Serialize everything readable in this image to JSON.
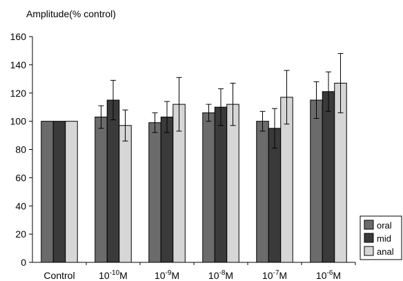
{
  "chart_data": {
    "type": "bar",
    "ylabel": "Amplitude(% control)",
    "xlabel": "",
    "ylim": [
      0,
      160
    ],
    "yticks": [
      0,
      20,
      40,
      60,
      80,
      100,
      120,
      140,
      160
    ],
    "categories": [
      {
        "base": "Control",
        "exp": "",
        "unit": ""
      },
      {
        "base": "10",
        "exp": "-10",
        "unit": "M"
      },
      {
        "base": "10",
        "exp": "-9",
        "unit": "M"
      },
      {
        "base": "10",
        "exp": "-8",
        "unit": "M"
      },
      {
        "base": "10",
        "exp": "-7",
        "unit": "M"
      },
      {
        "base": "10",
        "exp": "-6",
        "unit": "M"
      }
    ],
    "series": [
      {
        "name": "oral",
        "color": "#6b6b6b",
        "values": [
          100,
          103,
          99,
          106,
          100,
          115
        ],
        "errors": [
          0,
          8,
          7,
          6,
          7,
          13
        ]
      },
      {
        "name": "mid",
        "color": "#3a3a3a",
        "values": [
          100,
          115,
          103,
          110,
          95,
          121
        ],
        "errors": [
          0,
          14,
          11,
          13,
          14,
          14
        ]
      },
      {
        "name": "anal",
        "color": "#d6d6d6",
        "values": [
          100,
          97,
          112,
          112,
          117,
          127
        ],
        "errors": [
          0,
          11,
          19,
          15,
          19,
          21
        ]
      }
    ],
    "legend_position": "bottom-right",
    "error_bars": true,
    "grid": false
  }
}
